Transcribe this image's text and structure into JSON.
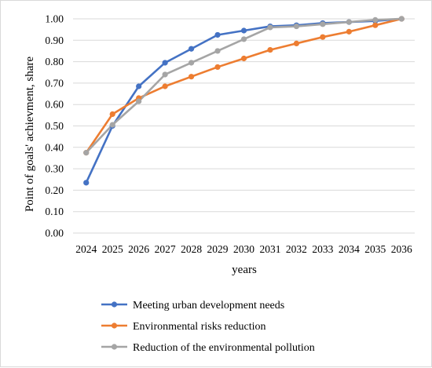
{
  "chart_data": {
    "type": "line",
    "xlabel": "years",
    "ylabel": "Point of goals' achievment, share",
    "ylim": [
      0,
      1
    ],
    "ytick_labels": [
      "0.00",
      "0.10",
      "0.20",
      "0.30",
      "0.40",
      "0.50",
      "0.60",
      "0.70",
      "0.80",
      "0.90",
      "1.00"
    ],
    "grid": "horizontal",
    "legend_position": "bottom",
    "categories": [
      "2024",
      "2025",
      "2026",
      "2027",
      "2028",
      "2029",
      "2030",
      "2031",
      "2032",
      "2033",
      "2034",
      "2035",
      "2036"
    ],
    "series": [
      {
        "name": "Meeting urban development needs",
        "color": "#4472C4",
        "values": [
          0.235,
          0.5,
          0.685,
          0.795,
          0.86,
          0.925,
          0.945,
          0.965,
          0.97,
          0.98,
          0.985,
          0.99,
          1.0
        ]
      },
      {
        "name": "Environmental risks reduction",
        "color": "#ED7D31",
        "values": [
          0.375,
          0.555,
          0.63,
          0.685,
          0.73,
          0.775,
          0.815,
          0.855,
          0.885,
          0.915,
          0.94,
          0.97,
          1.0
        ]
      },
      {
        "name": "Reduction of the environmental pollution",
        "color": "#A5A5A5",
        "values": [
          0.375,
          0.505,
          0.615,
          0.74,
          0.795,
          0.85,
          0.905,
          0.96,
          0.965,
          0.975,
          0.985,
          0.995,
          1.0
        ]
      }
    ]
  }
}
